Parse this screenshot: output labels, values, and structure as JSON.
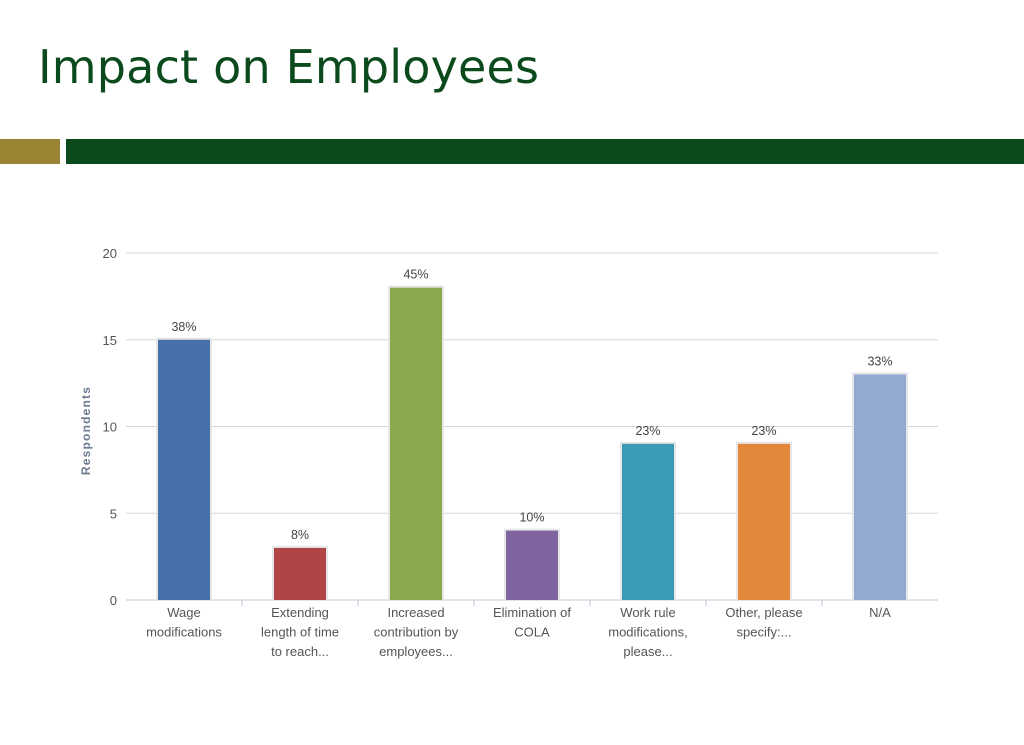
{
  "slide": {
    "title": "Impact on Employees"
  },
  "colors": {
    "title": "#0b4a1c",
    "accent_gold": "#9a8434",
    "accent_green": "#0b4a1c"
  },
  "chart_data": {
    "type": "bar",
    "title": "",
    "xlabel": "",
    "ylabel": "Respondents",
    "ylim": [
      0,
      20
    ],
    "yticks": [
      0,
      5,
      10,
      15,
      20
    ],
    "grid": true,
    "categories": [
      [
        "Wage",
        "modifications"
      ],
      [
        "Extending",
        "length of time",
        "to reach..."
      ],
      [
        "Increased",
        "contribution by",
        "employees..."
      ],
      [
        "Elimination of",
        "COLA"
      ],
      [
        "Work rule",
        "modifications,",
        "please..."
      ],
      [
        "Other, please",
        "specify:..."
      ],
      [
        "N/A"
      ]
    ],
    "values": [
      15,
      3,
      18,
      4,
      9,
      9,
      13
    ],
    "labels": [
      "38%",
      "8%",
      "45%",
      "10%",
      "23%",
      "23%",
      "33%"
    ],
    "colors": [
      "#4570aa",
      "#b04545",
      "#8aa84c",
      "#8064a0",
      "#3b9ab5",
      "#e3873b",
      "#94a9d2"
    ]
  }
}
